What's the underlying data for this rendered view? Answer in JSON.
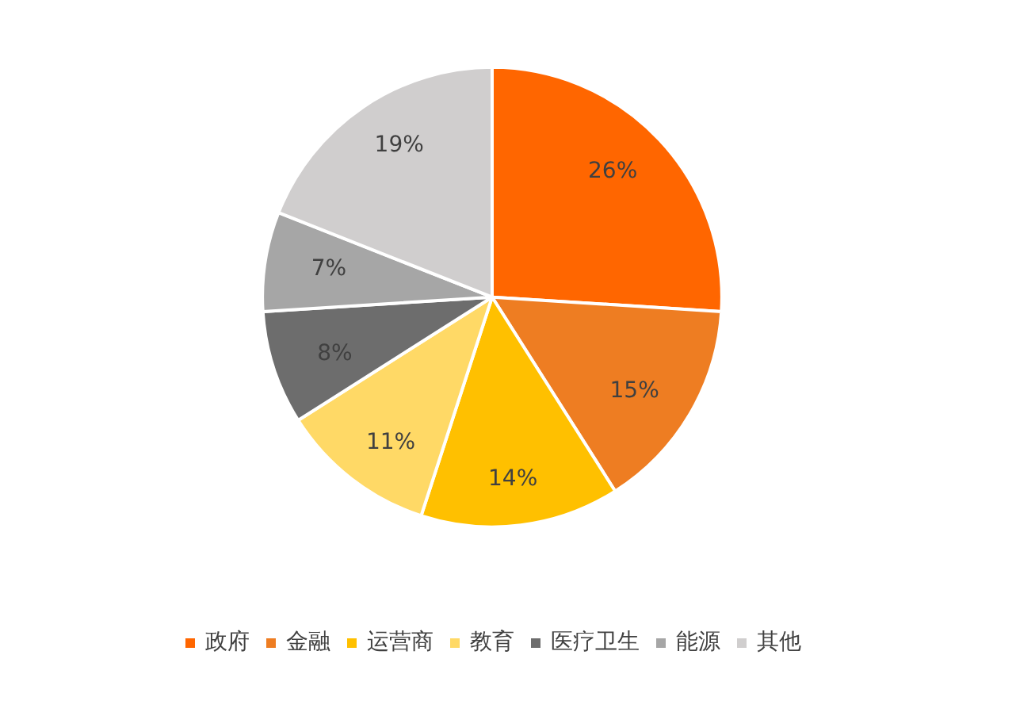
{
  "chart_data": {
    "type": "pie",
    "categories": [
      "政府",
      "金融",
      "运营商",
      "教育",
      "医疗卫生",
      "能源",
      "其他"
    ],
    "values": [
      26,
      15,
      14,
      11,
      8,
      7,
      19
    ],
    "colors": [
      "#ff6600",
      "#ee7d22",
      "#ffc000",
      "#ffd966",
      "#6d6d6d",
      "#a6a6a6",
      "#d0cece"
    ],
    "value_labels": [
      "26%",
      "15%",
      "14%",
      "11%",
      "8%",
      "7%",
      "19%"
    ],
    "legend": "bottom"
  }
}
